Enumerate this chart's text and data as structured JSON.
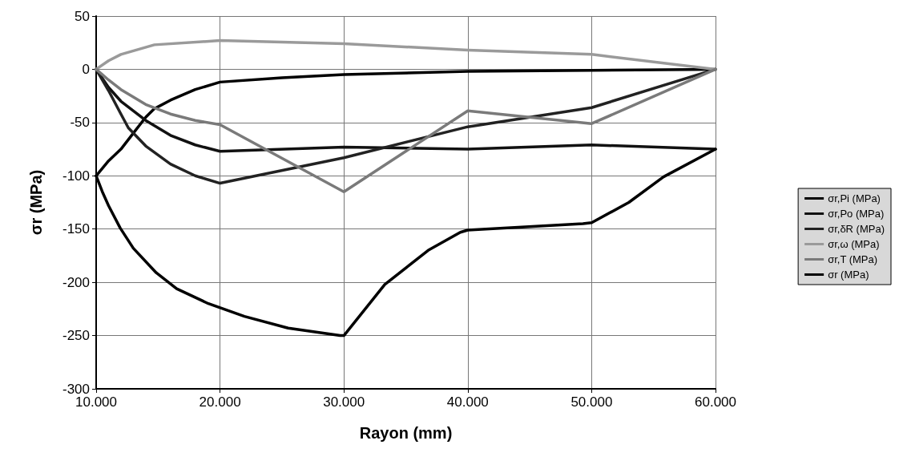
{
  "chart_data": {
    "type": "line",
    "xlabel": "Rayon (mm)",
    "ylabel": "σr (MPa)",
    "xlim": [
      10000,
      60000
    ],
    "xticks": [
      {
        "value": 10000,
        "label": "10.000"
      },
      {
        "value": 20000,
        "label": "20.000"
      },
      {
        "value": 30000,
        "label": "30.000"
      },
      {
        "value": 40000,
        "label": "40.000"
      },
      {
        "value": 50000,
        "label": "50.000"
      },
      {
        "value": 60000,
        "label": "60.000"
      }
    ],
    "ylim": [
      -300,
      50
    ],
    "yticks": [
      -300,
      -250,
      -200,
      -150,
      -100,
      -50,
      0,
      50
    ],
    "grid": true,
    "legend": "right",
    "marker": "none",
    "line_style": "solid",
    "series": [
      {
        "name": "σr,Pi (MPa)",
        "color": "#000000",
        "x": [
          10000,
          11000,
          12000,
          13000,
          14000,
          14700,
          16000,
          18000,
          20000,
          25000,
          30000,
          40000,
          50000,
          60000
        ],
        "values": [
          -100,
          -86,
          -75,
          -60,
          -45,
          -37,
          -29,
          -19,
          -12,
          -8,
          -5,
          -2,
          -1,
          0
        ]
      },
      {
        "name": "σr,Po (MPa)",
        "color": "#111111",
        "x": [
          10000,
          11000,
          12000,
          14000,
          16000,
          18000,
          20000,
          30000,
          40000,
          50000,
          60000
        ],
        "values": [
          0,
          -17,
          -30,
          -48,
          -62,
          -71,
          -77,
          -73,
          -75,
          -71,
          -75
        ]
      },
      {
        "name": "σr,δR (MPa)",
        "color": "#222222",
        "x": [
          10000,
          11000,
          12000,
          12600,
          14000,
          16000,
          18000,
          20000,
          30000,
          40000,
          50000,
          60000
        ],
        "values": [
          0,
          -20,
          -42,
          -55,
          -72,
          -89,
          -100,
          -107,
          -83,
          -54,
          -36,
          0
        ]
      },
      {
        "name": "σr,ω (MPa)",
        "color": "#9a9a9a",
        "x": [
          10000,
          11000,
          12000,
          14700,
          20000,
          30000,
          40000,
          50000,
          60000
        ],
        "values": [
          0,
          8,
          14,
          23,
          27,
          24,
          18,
          14,
          0
        ]
      },
      {
        "name": "σr,T (MPa)",
        "color": "#7a7a7a",
        "x": [
          10000,
          11000,
          12000,
          14000,
          16000,
          18000,
          20000,
          30000,
          40000,
          50000,
          60000
        ],
        "values": [
          0,
          -10,
          -19,
          -33,
          -42,
          -48,
          -52,
          -115,
          -39,
          -51,
          0
        ]
      },
      {
        "name": "σr (MPa)",
        "color": "#000000",
        "x": [
          10000,
          10500,
          11000,
          11940,
          13000,
          14850,
          16500,
          19060,
          21970,
          25500,
          29700,
          30000,
          33300,
          36800,
          39400,
          40000,
          49300,
          50000,
          53000,
          55800,
          60000
        ],
        "values": [
          -100,
          -115,
          -128,
          -149,
          -168,
          -191,
          -206,
          -220,
          -232,
          -243,
          -250,
          -250,
          -202,
          -170,
          -153,
          -151,
          -145,
          -144,
          -125,
          -101,
          -75
        ]
      }
    ]
  }
}
